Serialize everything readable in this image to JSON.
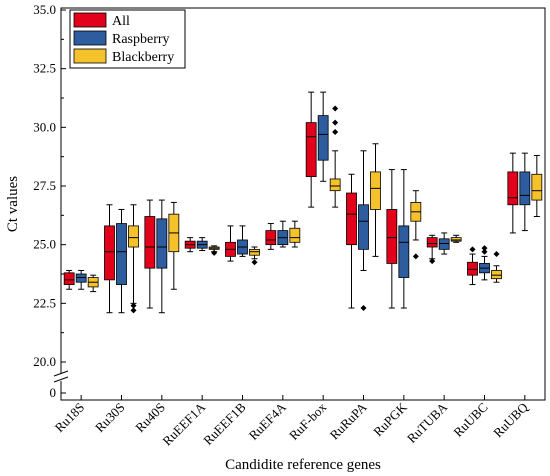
{
  "chart_data": {
    "type": "box",
    "title": "",
    "xlabel": "Candidite reference genes",
    "ylabel": "Ct values",
    "ylim": [
      20.0,
      35.0
    ],
    "y_break": true,
    "y_ticks": [
      0,
      20.0,
      22.5,
      25.0,
      27.5,
      30.0,
      32.5,
      35.0
    ],
    "y_tick_labels": [
      "0",
      "20.0",
      "22.5",
      "25.0",
      "27.5",
      "30.0",
      "32.5",
      "35.0"
    ],
    "legend_position": "top-left",
    "categories": [
      "Ru18S",
      "Ru30S",
      "Ru40S",
      "RuEEF1A",
      "RuEEF1B",
      "RuEF4A",
      "RuF-box",
      "RuRuPA",
      "RuPGK",
      "RuTUBA",
      "RuUBC",
      "RuUBQ"
    ],
    "series": [
      {
        "name": "All",
        "color": "#e3001b",
        "boxes": [
          {
            "min": 23.1,
            "q1": 23.3,
            "median": 23.5,
            "q3": 23.8,
            "max": 23.9,
            "outliers": []
          },
          {
            "min": 22.1,
            "q1": 23.5,
            "median": 24.7,
            "q3": 25.8,
            "max": 26.7,
            "outliers": []
          },
          {
            "min": 22.3,
            "q1": 24.0,
            "median": 24.9,
            "q3": 26.2,
            "max": 26.9,
            "outliers": []
          },
          {
            "min": 24.7,
            "q1": 24.85,
            "median": 25.0,
            "q3": 25.15,
            "max": 25.3,
            "outliers": []
          },
          {
            "min": 24.3,
            "q1": 24.5,
            "median": 24.8,
            "q3": 25.1,
            "max": 25.8,
            "outliers": []
          },
          {
            "min": 24.8,
            "q1": 25.0,
            "median": 25.2,
            "q3": 25.6,
            "max": 25.9,
            "outliers": []
          },
          {
            "min": 26.6,
            "q1": 27.9,
            "median": 29.6,
            "q3": 30.2,
            "max": 31.5,
            "outliers": []
          },
          {
            "min": 22.3,
            "q1": 25.0,
            "median": 26.3,
            "q3": 27.2,
            "max": 28.0,
            "outliers": []
          },
          {
            "min": 22.3,
            "q1": 24.2,
            "median": 25.3,
            "q3": 26.5,
            "max": 28.2,
            "outliers": []
          },
          {
            "min": 24.4,
            "q1": 24.9,
            "median": 25.05,
            "q3": 25.3,
            "max": 25.4,
            "outliers": [
              24.3
            ]
          },
          {
            "min": 23.3,
            "q1": 23.7,
            "median": 23.95,
            "q3": 24.25,
            "max": 24.6,
            "outliers": [
              24.8
            ]
          },
          {
            "min": 25.5,
            "q1": 26.7,
            "median": 27.0,
            "q3": 28.1,
            "max": 28.9,
            "outliers": []
          }
        ]
      },
      {
        "name": "Raspberry",
        "color": "#2e5d9f",
        "boxes": [
          {
            "min": 23.1,
            "q1": 23.4,
            "median": 23.6,
            "q3": 23.75,
            "max": 23.9,
            "outliers": []
          },
          {
            "min": 22.1,
            "q1": 23.3,
            "median": 24.7,
            "q3": 25.9,
            "max": 26.5,
            "outliers": []
          },
          {
            "min": 22.1,
            "q1": 24.0,
            "median": 24.9,
            "q3": 26.1,
            "max": 26.9,
            "outliers": []
          },
          {
            "min": 24.75,
            "q1": 24.85,
            "median": 25.0,
            "q3": 25.15,
            "max": 25.3,
            "outliers": []
          },
          {
            "min": 24.5,
            "q1": 24.6,
            "median": 24.9,
            "q3": 25.2,
            "max": 25.8,
            "outliers": []
          },
          {
            "min": 24.9,
            "q1": 25.0,
            "median": 25.3,
            "q3": 25.6,
            "max": 26.0,
            "outliers": []
          },
          {
            "min": 27.7,
            "q1": 28.6,
            "median": 29.7,
            "q3": 30.5,
            "max": 31.5,
            "outliers": []
          },
          {
            "min": 23.9,
            "q1": 24.8,
            "median": 26.0,
            "q3": 26.7,
            "max": 29.0,
            "outliers": [
              22.3
            ]
          },
          {
            "min": 22.3,
            "q1": 23.6,
            "median": 25.1,
            "q3": 25.8,
            "max": 28.2,
            "outliers": []
          },
          {
            "min": 24.6,
            "q1": 24.8,
            "median": 25.05,
            "q3": 25.25,
            "max": 25.5,
            "outliers": []
          },
          {
            "min": 23.5,
            "q1": 23.8,
            "median": 24.0,
            "q3": 24.2,
            "max": 24.5,
            "outliers": [
              24.7,
              24.85
            ]
          },
          {
            "min": 25.6,
            "q1": 26.7,
            "median": 27.1,
            "q3": 28.1,
            "max": 28.9,
            "outliers": []
          }
        ]
      },
      {
        "name": "Blackberry",
        "color": "#f5c22b",
        "boxes": [
          {
            "min": 23.0,
            "q1": 23.2,
            "median": 23.4,
            "q3": 23.6,
            "max": 23.7,
            "outliers": []
          },
          {
            "min": 22.5,
            "q1": 24.9,
            "median": 25.3,
            "q3": 25.8,
            "max": 26.7,
            "outliers": [
              22.2,
              22.4
            ]
          },
          {
            "min": 23.1,
            "q1": 24.7,
            "median": 25.5,
            "q3": 26.3,
            "max": 26.8,
            "outliers": []
          },
          {
            "min": 24.7,
            "q1": 24.8,
            "median": 24.85,
            "q3": 24.9,
            "max": 24.95,
            "outliers": [
              24.65
            ]
          },
          {
            "min": 24.4,
            "q1": 24.55,
            "median": 24.7,
            "q3": 24.8,
            "max": 24.9,
            "outliers": [
              24.25
            ]
          },
          {
            "min": 24.9,
            "q1": 25.1,
            "median": 25.3,
            "q3": 25.7,
            "max": 26.0,
            "outliers": []
          },
          {
            "min": 26.6,
            "q1": 27.3,
            "median": 27.5,
            "q3": 27.8,
            "max": 29.0,
            "outliers": [
              29.8,
              30.2,
              30.8
            ]
          },
          {
            "min": 24.5,
            "q1": 26.5,
            "median": 27.4,
            "q3": 28.1,
            "max": 29.3,
            "outliers": []
          },
          {
            "min": 25.2,
            "q1": 26.0,
            "median": 26.4,
            "q3": 26.8,
            "max": 27.3,
            "outliers": [
              24.5
            ]
          },
          {
            "min": 25.1,
            "q1": 25.15,
            "median": 25.2,
            "q3": 25.3,
            "max": 25.4,
            "outliers": []
          },
          {
            "min": 23.4,
            "q1": 23.55,
            "median": 23.7,
            "q3": 23.9,
            "max": 24.1,
            "outliers": [
              24.6
            ]
          },
          {
            "min": 26.2,
            "q1": 26.9,
            "median": 27.3,
            "q3": 28.0,
            "max": 28.8,
            "outliers": []
          }
        ]
      }
    ]
  }
}
